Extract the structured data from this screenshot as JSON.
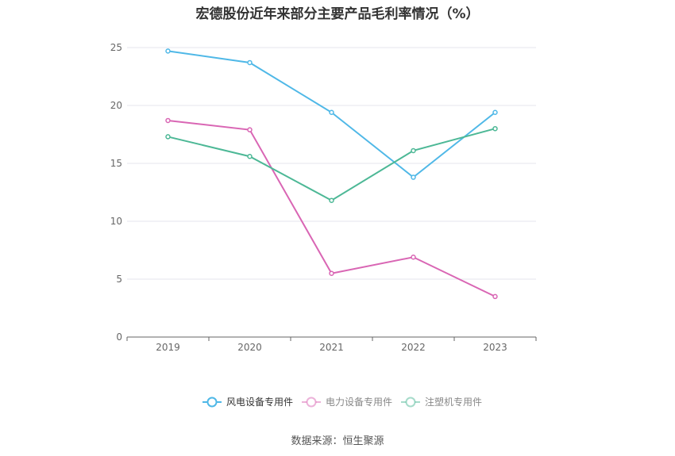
{
  "title": "宏德股份近年来部分主要产品毛利率情况（%）",
  "source": "数据来源：恒生聚源",
  "chart_data": {
    "type": "line",
    "title": "宏德股份近年来部分主要产品毛利率情况（%）",
    "categories": [
      "2019",
      "2020",
      "2021",
      "2022",
      "2023"
    ],
    "ylim": [
      0,
      25
    ],
    "yticks": [
      0,
      5,
      10,
      15,
      20,
      25
    ],
    "grid": true,
    "legend_position": "bottom",
    "series": [
      {
        "name": "风电设备专用件",
        "color": "#4fb8e7",
        "values": [
          24.7,
          23.7,
          19.4,
          13.8,
          19.4
        ]
      },
      {
        "name": "电力设备专用件",
        "color": "#d966b4",
        "values": [
          18.7,
          17.9,
          5.5,
          6.9,
          3.5
        ]
      },
      {
        "name": "注塑机专用件",
        "color": "#4db896",
        "values": [
          17.3,
          15.6,
          11.8,
          16.1,
          18.0
        ]
      }
    ]
  }
}
